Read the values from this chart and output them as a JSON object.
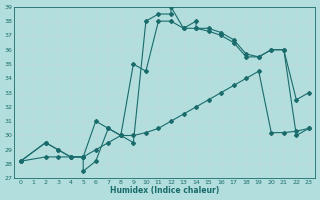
{
  "bg_color": "#b2dede",
  "grid_color": "#c8e8e8",
  "line_color": "#1a6b6b",
  "xlim": [
    -0.5,
    23.5
  ],
  "ylim": [
    27,
    39
  ],
  "xticks": [
    0,
    1,
    2,
    3,
    4,
    5,
    6,
    7,
    8,
    9,
    10,
    11,
    12,
    13,
    14,
    15,
    16,
    17,
    18,
    19,
    20,
    21,
    22,
    23
  ],
  "yticks": [
    27,
    28,
    29,
    30,
    31,
    32,
    33,
    34,
    35,
    36,
    37,
    38,
    39
  ],
  "xlabel": "Humidex (Indice chaleur)",
  "line1_x": [
    0,
    2,
    3,
    4,
    5,
    5,
    6,
    7,
    8,
    9,
    10,
    11,
    12,
    12,
    13,
    14,
    14,
    15,
    16,
    17,
    18,
    19,
    20,
    21,
    22,
    23
  ],
  "line1_y": [
    28.2,
    29.5,
    29.0,
    28.5,
    28.5,
    27.5,
    28.2,
    30.5,
    30.0,
    29.5,
    38.0,
    38.5,
    38.5,
    39.0,
    37.5,
    38.0,
    37.5,
    37.5,
    37.2,
    36.7,
    35.7,
    35.5,
    36.0,
    36.0,
    32.5,
    33.0
  ],
  "line2_x": [
    0,
    2,
    3,
    4,
    5,
    6,
    7,
    8,
    9,
    10,
    11,
    12,
    13,
    14,
    15,
    16,
    17,
    18,
    19,
    20,
    21,
    22,
    23
  ],
  "line2_y": [
    28.2,
    29.5,
    29.0,
    28.5,
    28.5,
    31.0,
    30.5,
    30.0,
    35.0,
    34.5,
    38.0,
    38.0,
    37.5,
    37.5,
    37.3,
    37.0,
    36.5,
    35.5,
    35.5,
    36.0,
    36.0,
    30.0,
    30.5
  ],
  "line3_x": [
    0,
    2,
    3,
    4,
    5,
    6,
    7,
    8,
    9,
    10,
    11,
    12,
    13,
    14,
    15,
    16,
    17,
    18,
    19,
    20,
    21,
    22,
    23
  ],
  "line3_y": [
    28.2,
    28.5,
    28.5,
    28.5,
    28.5,
    29.0,
    29.5,
    30.0,
    30.0,
    30.2,
    30.5,
    31.0,
    31.5,
    32.0,
    32.5,
    33.0,
    33.5,
    34.0,
    34.5,
    30.2,
    30.2,
    30.3,
    30.5
  ]
}
